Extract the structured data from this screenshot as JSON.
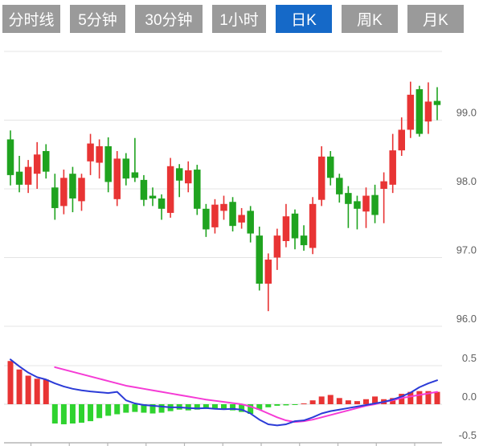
{
  "toolbar": {
    "tabs": [
      {
        "label": "分时线",
        "active": false
      },
      {
        "label": "5分钟",
        "active": false
      },
      {
        "label": "30分钟",
        "active": false
      },
      {
        "label": "1小时",
        "active": false
      },
      {
        "label": "日K",
        "active": true
      },
      {
        "label": "周K",
        "active": false
      },
      {
        "label": "月K",
        "active": false
      }
    ]
  },
  "colors": {
    "tab_bg": "#9a9a9a",
    "tab_active_bg": "#1569c8",
    "tab_text": "#ffffff",
    "candle_up": "#e83434",
    "candle_down": "#1fa31f",
    "hist_up": "#e83434",
    "hist_down": "#2fd32f",
    "dif_line": "#2b3bd7",
    "dea_line": "#f53bd5",
    "grid": "#e4e4e4",
    "zero_grid": "#dddddd",
    "axis": "#b5b5b5",
    "label": "#5f5f5f"
  },
  "chart_data": {
    "type": "candlestick_with_macd",
    "title": "",
    "legend": [],
    "price_panel": {
      "y_axis_ticks": [
        {
          "value": 100.0,
          "label": ""
        },
        {
          "value": 99.0,
          "label": "99.0"
        },
        {
          "value": 98.0,
          "label": "98.0"
        },
        {
          "value": 97.0,
          "label": "97.0"
        },
        {
          "value": 96.0,
          "label": "96.0"
        }
      ],
      "ylim": [
        95.7,
        100.1
      ],
      "candles_ohlc": [
        [
          98.72,
          98.85,
          98.05,
          98.2
        ],
        [
          98.25,
          98.48,
          97.95,
          98.06
        ],
        [
          98.06,
          98.42,
          97.94,
          98.32
        ],
        [
          98.22,
          98.68,
          98.0,
          98.5
        ],
        [
          98.55,
          98.65,
          98.15,
          98.25
        ],
        [
          98.02,
          98.22,
          97.55,
          97.72
        ],
        [
          97.75,
          98.28,
          97.63,
          98.16
        ],
        [
          98.22,
          98.32,
          97.66,
          97.86
        ],
        [
          97.82,
          98.22,
          97.68,
          98.16
        ],
        [
          98.4,
          98.8,
          98.2,
          98.66
        ],
        [
          98.38,
          98.72,
          98.15,
          98.62
        ],
        [
          98.62,
          98.75,
          97.95,
          98.1
        ],
        [
          97.85,
          98.55,
          97.75,
          98.44
        ],
        [
          98.44,
          98.52,
          98.05,
          98.15
        ],
        [
          98.24,
          98.74,
          98.1,
          98.16
        ],
        [
          98.13,
          98.2,
          97.75,
          97.84
        ],
        [
          97.9,
          98.02,
          97.75,
          97.86
        ],
        [
          97.86,
          97.92,
          97.55,
          97.71
        ],
        [
          97.65,
          98.45,
          97.58,
          98.33
        ],
        [
          98.3,
          98.36,
          97.88,
          98.12
        ],
        [
          98.08,
          98.4,
          97.95,
          98.27
        ],
        [
          98.28,
          98.35,
          97.62,
          97.71
        ],
        [
          97.71,
          97.78,
          97.3,
          97.41
        ],
        [
          97.44,
          97.85,
          97.35,
          97.77
        ],
        [
          97.68,
          97.9,
          97.55,
          97.78
        ],
        [
          97.81,
          97.88,
          97.38,
          97.46
        ],
        [
          97.51,
          97.72,
          97.42,
          97.62
        ],
        [
          97.68,
          97.75,
          97.22,
          97.35
        ],
        [
          97.32,
          97.45,
          96.52,
          96.62
        ],
        [
          96.62,
          97.06,
          96.22,
          96.97
        ],
        [
          97.0,
          97.42,
          96.82,
          97.32
        ],
        [
          97.24,
          97.78,
          97.15,
          97.6
        ],
        [
          97.64,
          97.7,
          97.12,
          97.28
        ],
        [
          97.32,
          97.47,
          97.1,
          97.18
        ],
        [
          97.14,
          97.88,
          97.05,
          97.78
        ],
        [
          97.84,
          98.62,
          97.75,
          98.47
        ],
        [
          98.47,
          98.55,
          98.05,
          98.16
        ],
        [
          98.16,
          98.22,
          97.8,
          97.92
        ],
        [
          97.94,
          98.04,
          97.43,
          97.78
        ],
        [
          97.82,
          97.9,
          97.41,
          97.71
        ],
        [
          97.67,
          98.02,
          97.43,
          97.9
        ],
        [
          97.91,
          98.06,
          97.5,
          97.62
        ],
        [
          98.0,
          98.24,
          97.5,
          98.11
        ],
        [
          98.06,
          98.8,
          97.94,
          98.56
        ],
        [
          98.56,
          99.04,
          98.48,
          98.86
        ],
        [
          98.86,
          99.56,
          98.74,
          99.37
        ],
        [
          99.45,
          99.5,
          98.76,
          98.8
        ],
        [
          98.98,
          99.55,
          98.8,
          99.27
        ],
        [
          99.28,
          99.48,
          99.0,
          99.22
        ]
      ]
    },
    "macd_panel": {
      "y_axis_ticks": [
        {
          "value": 0.5,
          "label": "0.5"
        },
        {
          "value": 0.0,
          "label": "0.0"
        },
        {
          "value": -0.5,
          "label": "-0.5"
        }
      ],
      "ylim": [
        -0.5,
        0.5
      ],
      "histogram": [
        0.56,
        0.45,
        0.37,
        0.33,
        0.32,
        -0.25,
        -0.26,
        -0.25,
        -0.24,
        -0.22,
        -0.18,
        -0.15,
        -0.13,
        -0.11,
        -0.1,
        -0.11,
        -0.12,
        -0.11,
        -0.09,
        -0.07,
        -0.08,
        -0.07,
        -0.06,
        -0.065,
        -0.07,
        -0.08,
        -0.1,
        -0.125,
        -0.07,
        -0.04,
        -0.02,
        -0.015,
        -0.01,
        0.01,
        0.05,
        0.1,
        0.12,
        0.08,
        0.05,
        0.04,
        0.065,
        0.1,
        0.065,
        0.08,
        0.135,
        0.16,
        0.17,
        0.17,
        0.16
      ],
      "dif_line": [
        0.58,
        0.49,
        0.41,
        0.35,
        0.32,
        0.27,
        0.23,
        0.2,
        0.18,
        0.165,
        0.155,
        0.145,
        0.16,
        0.05,
        0.01,
        -0.01,
        -0.02,
        -0.03,
        -0.04,
        -0.04,
        -0.05,
        -0.055,
        -0.05,
        -0.06,
        -0.065,
        -0.06,
        -0.07,
        -0.12,
        -0.2,
        -0.26,
        -0.275,
        -0.26,
        -0.22,
        -0.21,
        -0.17,
        -0.12,
        -0.09,
        -0.07,
        -0.05,
        -0.03,
        -0.01,
        0.01,
        0.03,
        0.06,
        0.1,
        0.15,
        0.22,
        0.27,
        0.31
      ],
      "dea_line": [
        null,
        null,
        null,
        null,
        null,
        0.48,
        0.45,
        0.42,
        0.39,
        0.36,
        0.33,
        0.3,
        0.27,
        0.24,
        0.22,
        0.2,
        0.18,
        0.16,
        0.14,
        0.12,
        0.1,
        0.08,
        0.06,
        0.045,
        0.03,
        0.015,
        0.0,
        -0.03,
        -0.07,
        -0.12,
        -0.17,
        -0.21,
        -0.23,
        -0.22,
        -0.2,
        -0.17,
        -0.14,
        -0.11,
        -0.08,
        -0.05,
        -0.02,
        0.0,
        0.03,
        0.05,
        0.08,
        0.1,
        0.12,
        0.14,
        0.16
      ]
    }
  }
}
